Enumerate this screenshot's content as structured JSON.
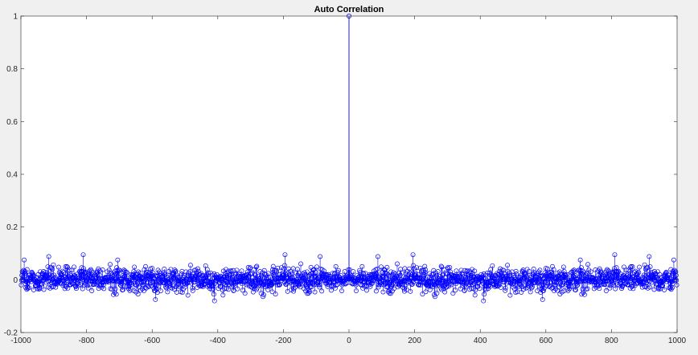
{
  "chart_data": {
    "type": "stem",
    "title": "Auto Correlation",
    "xlabel": "",
    "ylabel": "",
    "xlim": [
      -1000,
      1000
    ],
    "ylim": [
      -0.2,
      1
    ],
    "xticks": [
      -1000,
      -800,
      -600,
      -400,
      -200,
      0,
      200,
      400,
      600,
      800,
      1000
    ],
    "yticks": [
      -0.2,
      0,
      0.2,
      0.4,
      0.6,
      0.8,
      1
    ],
    "xtick_labels": [
      "-1000",
      "-800",
      "-600",
      "-400",
      "-200",
      "0",
      "200",
      "400",
      "600",
      "800",
      "1000"
    ],
    "ytick_labels": [
      "-0.2",
      "0",
      "0.2",
      "0.4",
      "0.6",
      "0.8",
      "1"
    ],
    "grid": false,
    "series_color": "#0000ff",
    "peak": {
      "x": 0,
      "y": 1
    },
    "sidelobe_range": [
      -0.08,
      0.095
    ],
    "notable_points": [
      {
        "x": -990,
        "y": 0.075
      },
      {
        "x": -915,
        "y": 0.088
      },
      {
        "x": -810,
        "y": 0.095
      },
      {
        "x": -705,
        "y": 0.075
      },
      {
        "x": -195,
        "y": 0.095
      },
      {
        "x": -88,
        "y": 0.088
      },
      {
        "x": 88,
        "y": 0.088
      },
      {
        "x": 195,
        "y": 0.095
      },
      {
        "x": 705,
        "y": 0.075
      },
      {
        "x": 810,
        "y": 0.095
      },
      {
        "x": 915,
        "y": 0.088
      },
      {
        "x": 990,
        "y": 0.075
      },
      {
        "x": -590,
        "y": -0.075
      },
      {
        "x": -410,
        "y": -0.08
      },
      {
        "x": 410,
        "y": -0.08
      },
      {
        "x": 590,
        "y": -0.075
      }
    ]
  },
  "colors": {
    "figure_background": "#f0f0f0",
    "axes_background": "#ffffff",
    "axis_line": "#262626",
    "stem": "#0000ff"
  }
}
